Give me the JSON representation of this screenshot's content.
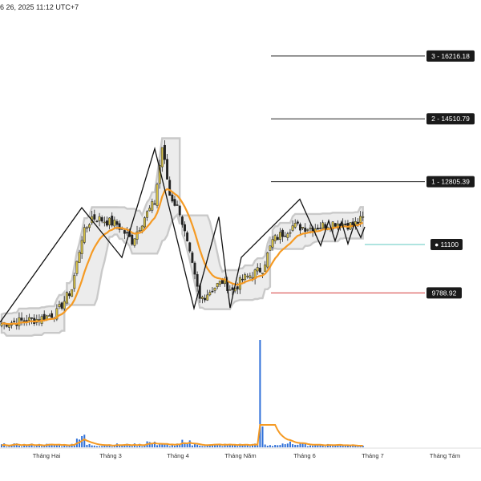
{
  "header": {
    "timestamp": "6 26, 2025 11:12 UTC+7"
  },
  "chart_data": {
    "type": "candlestick",
    "x_axis_labels": [
      "Tháng Hai",
      "Tháng 3",
      "Tháng 4",
      "Tháng Năm",
      "Tháng 6",
      "Tháng 7",
      "Tháng Tám"
    ],
    "y_range": [
      8600,
      17300
    ],
    "levels": [
      {
        "label": "3 - 16216.18",
        "value": 16216.18
      },
      {
        "label": "2 - 14510.79",
        "value": 14510.79
      },
      {
        "label": "1 - 12805.39",
        "value": 12805.39
      },
      {
        "label": "11100",
        "value": 11100
      },
      {
        "label": "9788.92",
        "value": 9788.92
      }
    ],
    "zigzag": [
      8990,
      12100,
      10750,
      13700,
      9370,
      11850,
      9380,
      10750,
      12330,
      11070,
      11750,
      11200,
      11720,
      11120,
      11660,
      11290,
      11580
    ],
    "series": [
      {
        "name": "EMA",
        "color": "#f59a23"
      }
    ],
    "colors": {
      "up": "#d8c246",
      "down": "#222222",
      "ema": "#f59a23",
      "volume": "#2e6fd8",
      "level": "#222222",
      "level_11100": "#5fc8c0",
      "level_9788": "#d23a3a"
    }
  }
}
